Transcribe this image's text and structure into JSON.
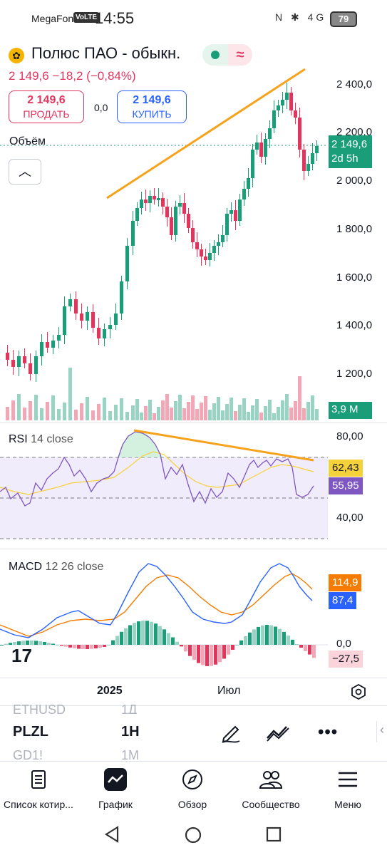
{
  "status_bar": {
    "carrier": "MegaFon",
    "volte": "VoLTE",
    "time": "14:55",
    "icons": "N ✱ 4G",
    "battery": "79"
  },
  "header": {
    "symbol_name": "Полюс ПАО - обыкн.",
    "price_line": "2 149,6  −18,2 (−0,84%)",
    "logo_icon": "flower-icon"
  },
  "trade": {
    "sell_price": "2 149,6",
    "sell_label": "ПРОДАТЬ",
    "spread": "0,0",
    "buy_price": "2 149,6",
    "buy_label": "КУПИТЬ"
  },
  "main_chart": {
    "volume_label": "Объём",
    "y_ticks": [
      "2 400,0",
      "2 200,0",
      "2 000,0",
      "1 800,0",
      "1 600,0",
      "1 400,0",
      "1 200,0"
    ],
    "price_tag": "2 149,6",
    "countdown": "2d 5h",
    "volume_tag": "3,9 M",
    "colors": {
      "up": "#1a9e7a",
      "down": "#e2355e",
      "trendline": "#f7a21b"
    }
  },
  "rsi": {
    "title": "RSI",
    "params": "14 close",
    "y_ticks": [
      "80,00",
      "40,00"
    ],
    "value_ma": "62,43",
    "value_rsi": "55,95"
  },
  "macd": {
    "title": "MACD",
    "params": "12 26 close",
    "value_signal": "114,9",
    "value_macd": "87,4",
    "zero": "0,0",
    "value_hist": "−27,5"
  },
  "x_axis": {
    "labels": [
      "2025",
      "Июл"
    ]
  },
  "watchlist": {
    "prev": {
      "symbol": "ETHUSD",
      "interval": "1Д"
    },
    "current": {
      "symbol": "PLZL",
      "interval": "1H"
    },
    "next": {
      "symbol": "GD1!",
      "interval": "1M"
    }
  },
  "bottom_nav": [
    {
      "label": "Список котир...",
      "icon": "list-icon"
    },
    {
      "label": "График",
      "icon": "chart-icon"
    },
    {
      "label": "Обзор",
      "icon": "compass-icon"
    },
    {
      "label": "Сообщество",
      "icon": "community-icon"
    },
    {
      "label": "Меню",
      "icon": "menu-icon"
    }
  ]
}
